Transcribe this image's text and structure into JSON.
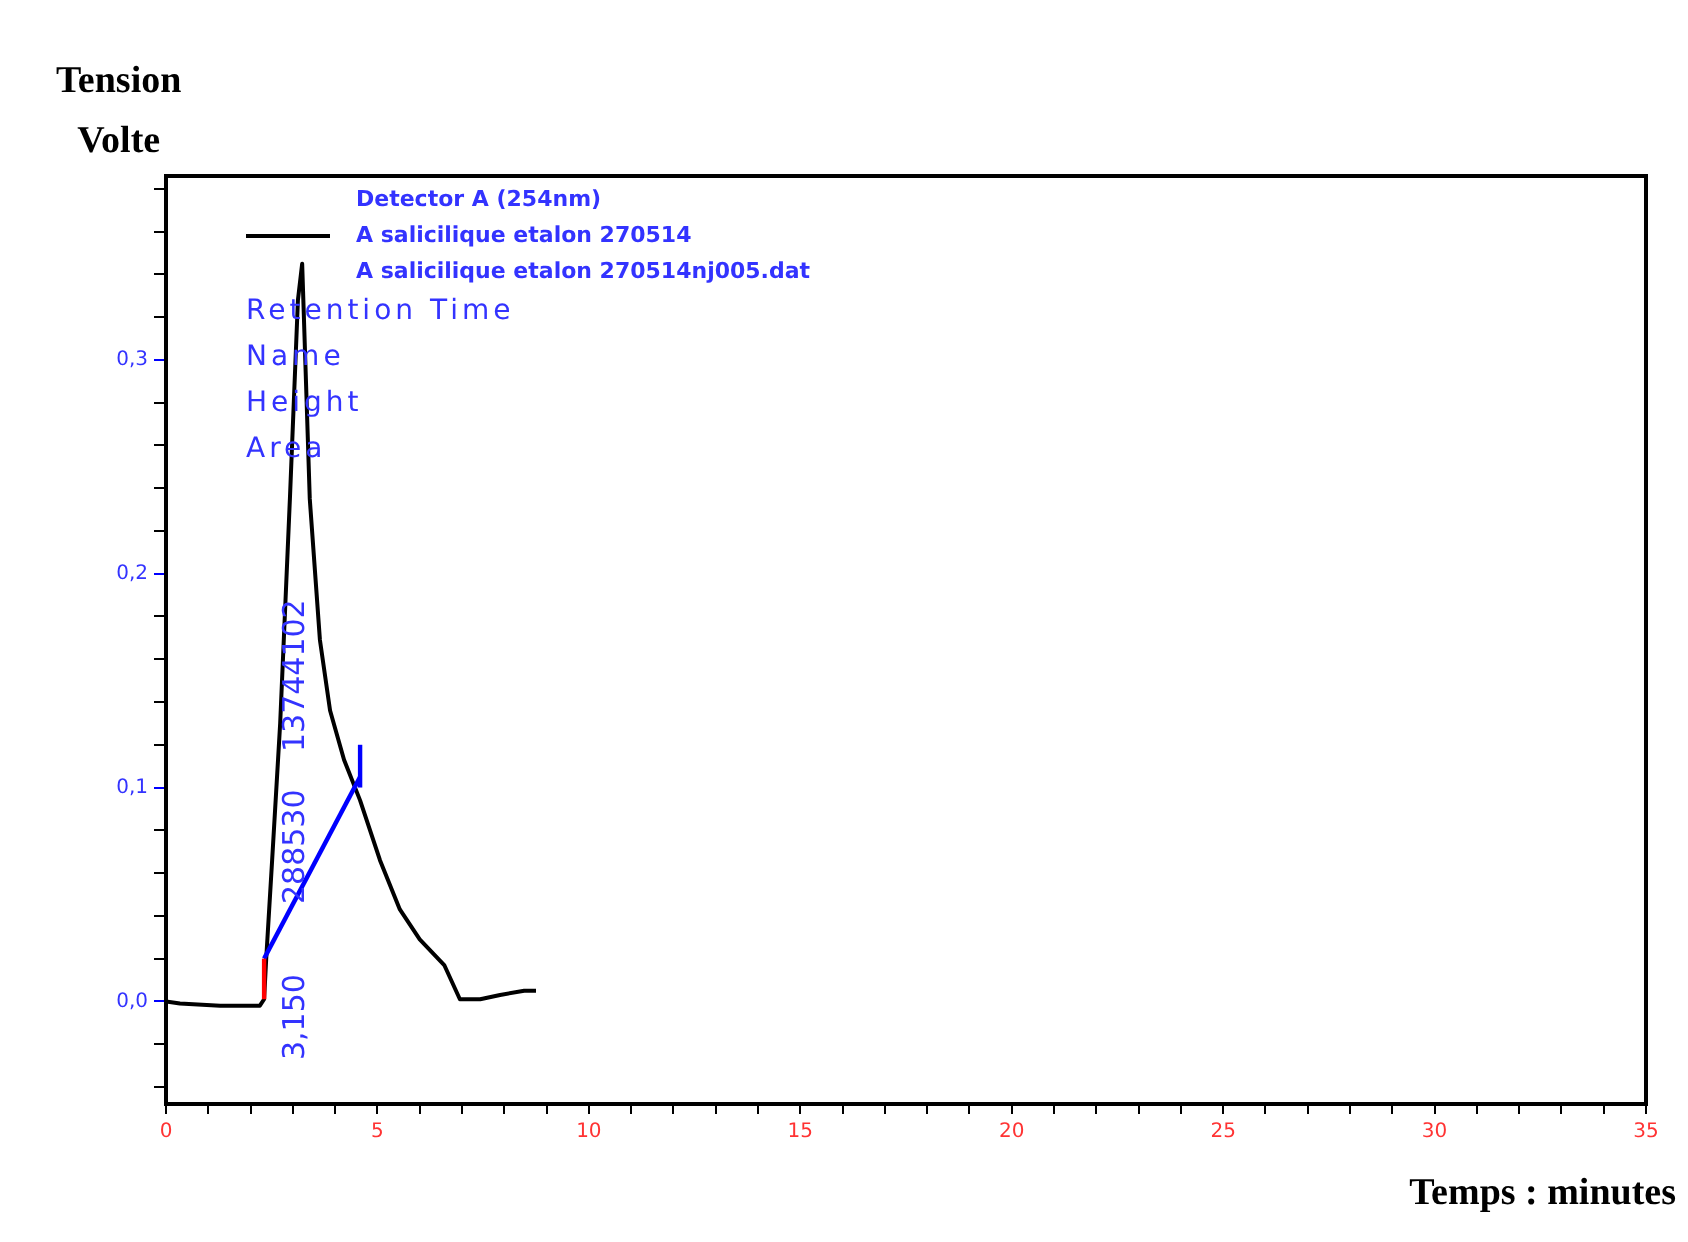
{
  "chart_data": {
    "type": "line",
    "xlabel": "Temps : minutes",
    "ylabel": "Tension\nVolte",
    "legend_title": "Detector A (254nm)",
    "legend": "top left",
    "grid": false,
    "marker": "none",
    "line_style": "solid",
    "xlim": [
      0,
      35
    ],
    "xticks": [
      0,
      {
        "value": 1,
        "label": null
      },
      {
        "value": 2,
        "label": null
      },
      {
        "value": 3,
        "label": null
      },
      {
        "value": 4,
        "label": null
      },
      5,
      {
        "value": 6,
        "label": null
      },
      {
        "value": 7,
        "label": null
      },
      {
        "value": 8,
        "label": null
      },
      {
        "value": 9,
        "label": null
      },
      10,
      {
        "value": 11,
        "label": null
      },
      {
        "value": 12,
        "label": null
      },
      {
        "value": 13,
        "label": null
      },
      {
        "value": 14,
        "label": null
      },
      15,
      {
        "value": 16,
        "label": null
      },
      {
        "value": 17,
        "label": null
      },
      {
        "value": 18,
        "label": null
      },
      {
        "value": 19,
        "label": null
      },
      20,
      {
        "value": 21,
        "label": null
      },
      {
        "value": 22,
        "label": null
      },
      {
        "value": 23,
        "label": null
      },
      {
        "value": 24,
        "label": null
      },
      25,
      {
        "value": 26,
        "label": null
      },
      {
        "value": 27,
        "label": null
      },
      {
        "value": 28,
        "label": null
      },
      {
        "value": 29,
        "label": null
      },
      30,
      {
        "value": 31,
        "label": null
      },
      {
        "value": 32,
        "label": null
      },
      {
        "value": 33,
        "label": null
      },
      {
        "value": 34,
        "label": null
      },
      35
    ],
    "ylim": [
      -0.048,
      0.386
    ],
    "yticks": [
      {
        "value": -0.04,
        "label": null
      },
      {
        "value": -0.02,
        "label": null
      },
      {
        "value": 0,
        "label": "0,0"
      },
      {
        "value": 0.02,
        "label": null
      },
      {
        "value": 0.04,
        "label": null
      },
      {
        "value": 0.06,
        "label": null
      },
      {
        "value": 0.08,
        "label": null
      },
      {
        "value": 0.1,
        "label": "0,1"
      },
      {
        "value": 0.12,
        "label": null
      },
      {
        "value": 0.14,
        "label": null
      },
      {
        "value": 0.16,
        "label": null
      },
      {
        "value": 0.18,
        "label": null
      },
      {
        "value": 0.2,
        "label": "0,2"
      },
      {
        "value": 0.22,
        "label": null
      },
      {
        "value": 0.24,
        "label": null
      },
      {
        "value": 0.26,
        "label": null
      },
      {
        "value": 0.28,
        "label": null
      },
      {
        "value": 0.3,
        "label": "0,3"
      },
      {
        "value": 0.32,
        "label": null
      },
      {
        "value": 0.34,
        "label": null
      },
      {
        "value": 0.36,
        "label": null
      },
      {
        "value": 0.38,
        "label": null
      }
    ],
    "series": [
      {
        "name": "A salicilique etalon 270514",
        "color": "#000000",
        "x": [
          0,
          0.33,
          1.28,
          2.22,
          2.32,
          2.37,
          2.51,
          2.7,
          2.93,
          3.12,
          3.22,
          3.4,
          3.64,
          3.88,
          4.21,
          4.59,
          5.06,
          5.53,
          6.0,
          6.58,
          6.95,
          7.43,
          7.9,
          8.47,
          8.75
        ],
        "values": [
          0,
          -0.001,
          -0.002,
          -0.002,
          0.001,
          0.02,
          0.066,
          0.13,
          0.235,
          0.328,
          0.345,
          0.235,
          0.169,
          0.136,
          0.113,
          0.094,
          0.066,
          0.043,
          0.029,
          0.017,
          0.001,
          0.001,
          0.003,
          0.005,
          0.005
        ]
      },
      {
        "type": "line",
        "color": "#0000ff",
        "x": [
          2.32,
          4.59
        ],
        "values": [
          0.02,
          0.105
        ]
      },
      {
        "type": "line",
        "color": "#0000ff",
        "x": [
          4.59,
          4.59
        ],
        "values": [
          0.1,
          0.12
        ]
      },
      {
        "type": "line",
        "color": "#ff0000",
        "x": [
          2.32,
          2.32
        ],
        "values": [
          0.001,
          0.02
        ]
      }
    ],
    "annotations": [
      "A salicilique etalon 270514nj005.dat",
      "Retention Time",
      "Name",
      "Height",
      "Area",
      "3,150",
      "288530",
      "13744102"
    ]
  }
}
